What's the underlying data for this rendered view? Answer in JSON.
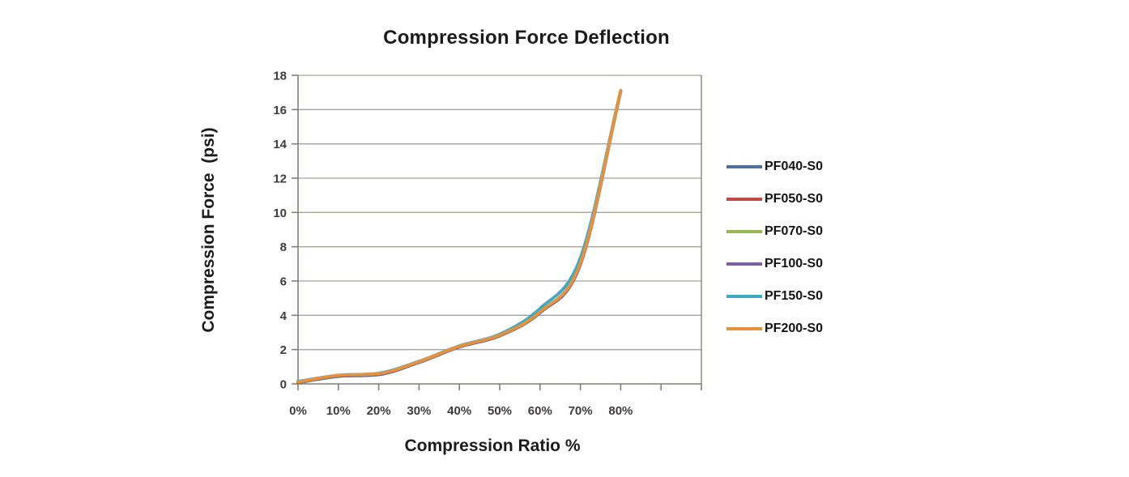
{
  "chart_data": {
    "type": "line",
    "title": "Compression Force Deflection",
    "xlabel": "Compression Ratio %",
    "ylabel": "Compression Force  (psi)",
    "categories": [
      "0%",
      "10%",
      "20%",
      "30%",
      "40%",
      "50%",
      "60%",
      "70%",
      "80%"
    ],
    "x_tick_labels": [
      "0%",
      "10%",
      "20%",
      "30%",
      "40%",
      "50%",
      "60%",
      "70%",
      "80%"
    ],
    "extra_unlabeled_ticks": 2,
    "y_tick_labels": [
      "0",
      "2",
      "4",
      "6",
      "8",
      "10",
      "12",
      "14",
      "16",
      "18"
    ],
    "ylim": [
      0,
      18
    ],
    "y_tick_step": 2,
    "grid": "horizontal",
    "smooth_lines": true,
    "legend_position": "right",
    "series": [
      {
        "name": "PF040-S0",
        "color": "#4e6f9e",
        "values": [
          0.08,
          0.44,
          0.54,
          1.25,
          2.15,
          2.8,
          4.15,
          6.95,
          17.05
        ]
      },
      {
        "name": "PF050-S0",
        "color": "#bf4b47",
        "values": [
          0.12,
          0.48,
          0.58,
          1.28,
          2.18,
          2.83,
          4.18,
          7.0,
          17.08
        ]
      },
      {
        "name": "PF070-S0",
        "color": "#94b854",
        "values": [
          0.12,
          0.48,
          0.58,
          1.28,
          2.18,
          2.83,
          4.18,
          7.0,
          17.08
        ]
      },
      {
        "name": "PF100-S0",
        "color": "#7d61a0",
        "values": [
          0.12,
          0.48,
          0.58,
          1.28,
          2.18,
          2.83,
          4.18,
          7.0,
          17.08
        ]
      },
      {
        "name": "PF150-S0",
        "color": "#3fa8c2",
        "values": [
          0.15,
          0.5,
          0.62,
          1.32,
          2.22,
          2.9,
          4.4,
          7.35,
          17.12
        ]
      },
      {
        "name": "PF200-S0",
        "color": "#e8913c",
        "values": [
          0.12,
          0.5,
          0.6,
          1.3,
          2.2,
          2.85,
          4.2,
          7.05,
          17.1
        ]
      }
    ],
    "colors": {
      "axis": "#847e73",
      "gridline": "#a7a299",
      "tick_label": "#403a3b",
      "title_text": "#1b1b1b"
    }
  }
}
